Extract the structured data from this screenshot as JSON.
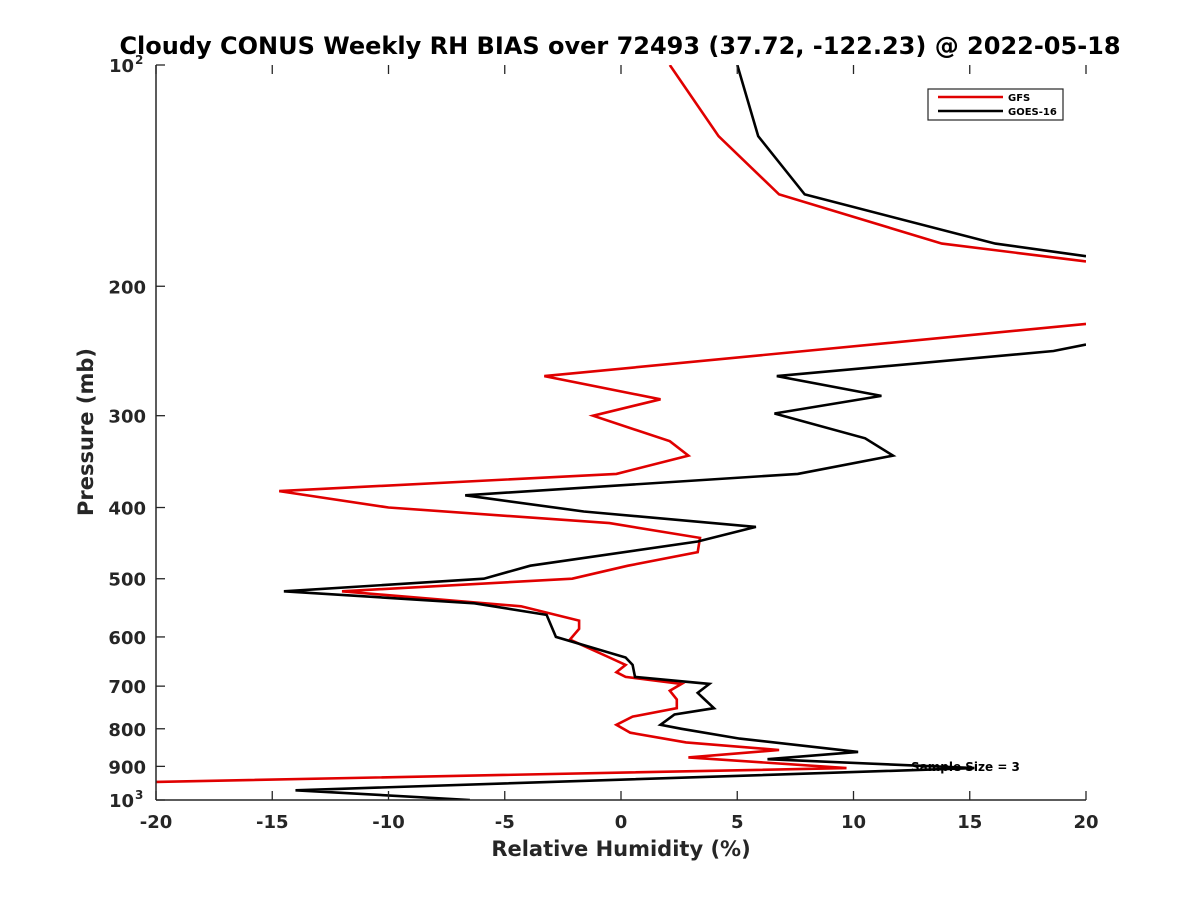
{
  "chart_data": {
    "type": "line",
    "title": "Cloudy CONUS Weekly RH BIAS over 72493 (37.72, -122.23) @ 2022-05-18",
    "xlabel": "Relative Humidity (%)",
    "ylabel": "Pressure (mb)",
    "xlim": [
      -20,
      20
    ],
    "ylim": [
      100,
      1000
    ],
    "y_scale": "log",
    "y_reversed": true,
    "grid": false,
    "legend_position": "top-right",
    "x_ticks": [
      -20,
      -15,
      -10,
      -5,
      0,
      5,
      10,
      15,
      20
    ],
    "x_tick_labels": [
      "-20",
      "-15",
      "-10",
      "-5",
      "0",
      "5",
      "10",
      "15",
      "20"
    ],
    "y_ticks": [
      {
        "value": 100,
        "base": "10",
        "sup": "2"
      },
      {
        "value": 200,
        "label": "200"
      },
      {
        "value": 300,
        "label": "300"
      },
      {
        "value": 400,
        "label": "400"
      },
      {
        "value": 500,
        "label": "500"
      },
      {
        "value": 600,
        "label": "600"
      },
      {
        "value": 700,
        "label": "700"
      },
      {
        "value": 800,
        "label": "800"
      },
      {
        "value": 900,
        "label": "900"
      },
      {
        "value": 1000,
        "base": "10",
        "sup": "3"
      }
    ],
    "annotation": "Sample Size = 3",
    "series": [
      {
        "name": "GFS",
        "color": "#e00000",
        "points": [
          [
            2.1,
            100
          ],
          [
            4.2,
            125
          ],
          [
            6.8,
            150
          ],
          [
            13.8,
            175
          ],
          [
            20,
            185
          ],
          [
            null,
            null
          ],
          [
            20,
            225
          ],
          [
            -3.3,
            265
          ],
          [
            1.7,
            285
          ],
          [
            -1.2,
            300
          ],
          [
            2.1,
            325
          ],
          [
            2.9,
            340
          ],
          [
            -0.2,
            360
          ],
          [
            -14.7,
            380
          ],
          [
            -10.0,
            400
          ],
          [
            -0.5,
            420
          ],
          [
            3.4,
            440
          ],
          [
            3.3,
            460
          ],
          [
            0.3,
            480
          ],
          [
            -2.1,
            500
          ],
          [
            -12.0,
            520
          ],
          [
            -4.3,
            545
          ],
          [
            -1.8,
            570
          ],
          [
            -1.8,
            585
          ],
          [
            -2.2,
            605
          ],
          [
            -0.5,
            640
          ],
          [
            0.2,
            655
          ],
          [
            -0.2,
            670
          ],
          [
            0.2,
            680
          ],
          [
            2.6,
            695
          ],
          [
            2.1,
            710
          ],
          [
            2.4,
            730
          ],
          [
            2.4,
            750
          ],
          [
            0.5,
            770
          ],
          [
            -0.2,
            790
          ],
          [
            0.4,
            810
          ],
          [
            2.8,
            835
          ],
          [
            6.8,
            855
          ],
          [
            2.9,
            875
          ],
          [
            9.7,
            905
          ],
          [
            -20,
            945
          ]
        ]
      },
      {
        "name": "GOES-16",
        "color": "#000000",
        "points": [
          [
            5.0,
            100
          ],
          [
            5.9,
            125
          ],
          [
            7.9,
            150
          ],
          [
            16.1,
            175
          ],
          [
            20,
            182
          ],
          [
            null,
            null
          ],
          [
            20,
            240
          ],
          [
            18.6,
            245
          ],
          [
            6.7,
            265
          ],
          [
            11.2,
            282
          ],
          [
            6.6,
            298
          ],
          [
            10.5,
            322
          ],
          [
            11.7,
            340
          ],
          [
            7.6,
            360
          ],
          [
            -6.7,
            385
          ],
          [
            -1.6,
            405
          ],
          [
            5.8,
            425
          ],
          [
            3.3,
            445
          ],
          [
            -3.9,
            480
          ],
          [
            -5.9,
            500
          ],
          [
            -14.5,
            520
          ],
          [
            -6.3,
            540
          ],
          [
            -3.2,
            560
          ],
          [
            -2.8,
            600
          ],
          [
            0.2,
            640
          ],
          [
            0.5,
            655
          ],
          [
            0.6,
            680
          ],
          [
            3.8,
            695
          ],
          [
            3.3,
            715
          ],
          [
            3.6,
            730
          ],
          [
            4.0,
            750
          ],
          [
            2.3,
            765
          ],
          [
            1.7,
            790
          ],
          [
            2.6,
            800
          ],
          [
            5.1,
            825
          ],
          [
            10.2,
            860
          ],
          [
            6.3,
            880
          ],
          [
            15.2,
            905
          ],
          [
            -14.0,
            970
          ],
          [
            -6.5,
            1000
          ]
        ]
      }
    ]
  }
}
